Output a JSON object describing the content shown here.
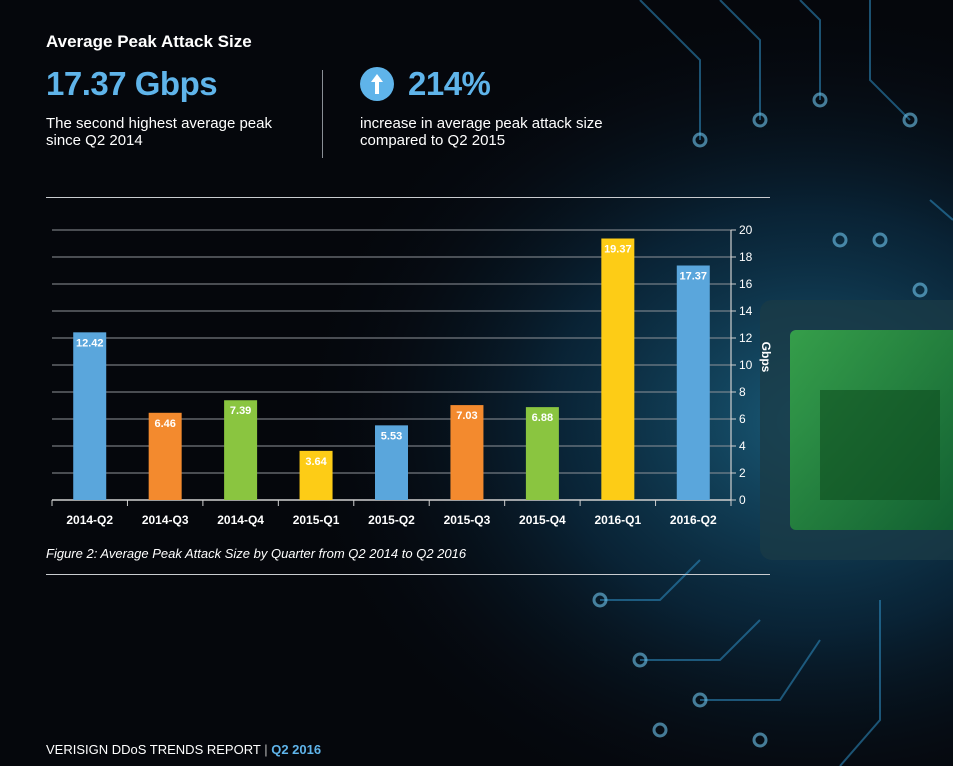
{
  "header": {
    "title": "Average Peak Attack Size"
  },
  "stats": {
    "peak_value": "17.37 Gbps",
    "peak_desc": "The second highest average peak since Q2 2014",
    "increase_value": "214%",
    "increase_desc": "increase in average peak attack size compared to Q2 2015",
    "increase_icon": "up-arrow-icon"
  },
  "caption": "Figure 2: Average Peak Attack Size by Quarter from Q2 2014 to Q2 2016",
  "footer": {
    "report": "VERISIGN DDoS TRENDS REPORT",
    "separator": "|",
    "quarter": "Q2 2016"
  },
  "colors": {
    "blue": "#5aa6dc",
    "orange": "#f38a2e",
    "green": "#8ac540",
    "yellow": "#fdcc16",
    "accent": "#5fb4ea"
  },
  "chart_data": {
    "type": "bar",
    "categories": [
      "2014-Q2",
      "2014-Q3",
      "2014-Q4",
      "2015-Q1",
      "2015-Q2",
      "2015-Q3",
      "2015-Q4",
      "2016-Q1",
      "2016-Q2"
    ],
    "values": [
      12.42,
      6.46,
      7.39,
      3.64,
      5.53,
      7.03,
      6.88,
      19.37,
      17.37
    ],
    "value_labels": [
      "12.42",
      "6.46",
      "7.39",
      "3.64",
      "5.53",
      "7.03",
      "6.88",
      "19.37",
      "17.37"
    ],
    "bar_colors": [
      "#5aa6dc",
      "#f38a2e",
      "#8ac540",
      "#fdcc16",
      "#5aa6dc",
      "#f38a2e",
      "#8ac540",
      "#fdcc16",
      "#5aa6dc"
    ],
    "ylabel": "Gbps",
    "ylim": [
      0,
      20
    ],
    "yticks": [
      0,
      2,
      4,
      6,
      8,
      10,
      12,
      14,
      16,
      18,
      20
    ],
    "y_axis_side": "right",
    "grid": true
  }
}
